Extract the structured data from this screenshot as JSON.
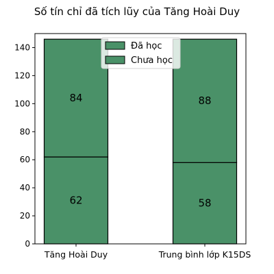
{
  "chart_data": {
    "type": "bar",
    "stacked": true,
    "title": "Số tín chỉ đã tích lũy của Tăng Hoài Duy",
    "xlabel": "",
    "ylabel": "",
    "categories": [
      "Tăng Hoài Duy",
      "Trung bình lớp K15DS"
    ],
    "series": [
      {
        "name": "Đã học",
        "values": [
          62,
          58
        ],
        "color": "#4a9168"
      },
      {
        "name": "Chưa học",
        "values": [
          84,
          88
        ],
        "color": "#4a9168"
      }
    ],
    "ylim": [
      0,
      150
    ],
    "yticks": [
      0,
      20,
      40,
      60,
      80,
      100,
      120,
      140
    ],
    "grid": false,
    "legend": "top-center",
    "edge_color": "#000000"
  }
}
